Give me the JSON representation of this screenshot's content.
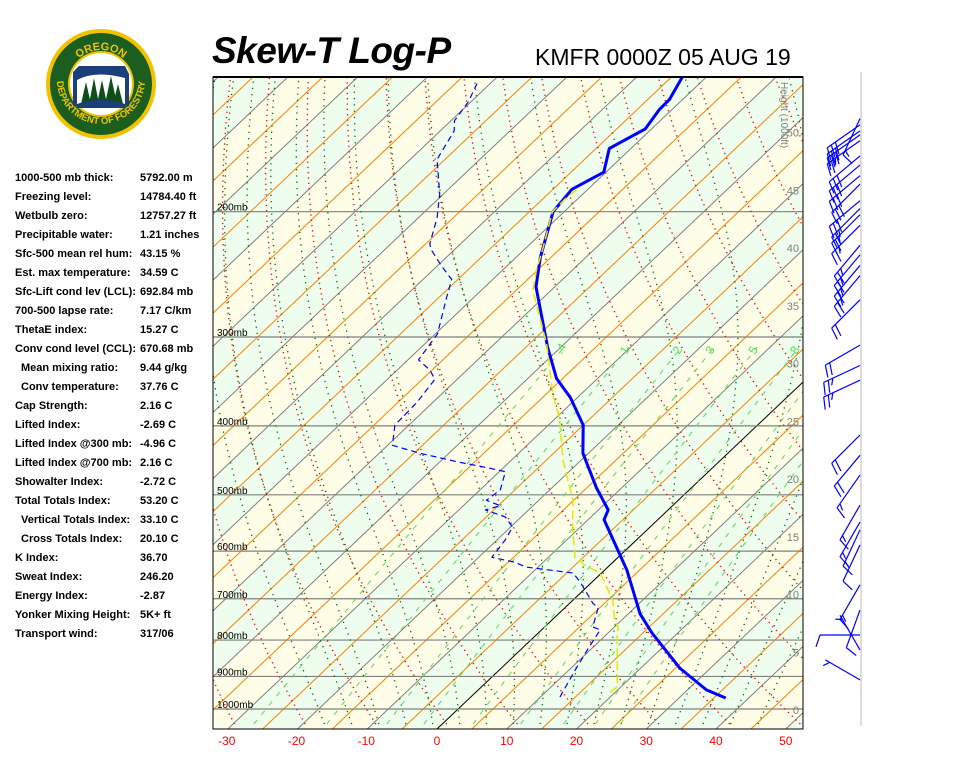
{
  "header": {
    "title": "Skew-T Log-P",
    "station": "KMFR 0000Z 05 AUG 19"
  },
  "logo": {
    "top_text": "OREGON",
    "bottom_text": "DEPARTMENT OF FORESTRY",
    "colors": {
      "ring": "#f2c200",
      "field": "#1b5e20"
    }
  },
  "stats": [
    {
      "label": "1000-500 mb thick:",
      "value": "5792.00 m"
    },
    {
      "label": "Freezing level:",
      "value": "14784.40 ft"
    },
    {
      "label": "Wetbulb zero:",
      "value": "12757.27 ft"
    },
    {
      "label": "Precipitable water:",
      "value": "1.21 inches"
    },
    {
      "label": "Sfc-500 mean rel hum:",
      "value": "43.15 %"
    },
    {
      "label": "Est. max temperature:",
      "value": "34.59 C"
    },
    {
      "label": "Sfc-Lift cond lev (LCL):",
      "value": "692.84 mb"
    },
    {
      "label": "700-500 lapse rate:",
      "value": "7.17 C/km"
    },
    {
      "label": "ThetaE index:",
      "value": "15.27 C"
    },
    {
      "label": "Conv cond level (CCL):",
      "value": "670.68 mb"
    },
    {
      "label": "Mean mixing ratio:",
      "value": "9.44 g/kg",
      "sub": true
    },
    {
      "label": "Conv temperature:",
      "value": "37.76 C",
      "sub": true
    },
    {
      "label": "Cap Strength:",
      "value": "2.16 C"
    },
    {
      "label": "Lifted Index:",
      "value": "-2.69 C"
    },
    {
      "label": "Lifted Index @300 mb:",
      "value": "-4.96 C"
    },
    {
      "label": "Lifted Index @700 mb:",
      "value": "2.16 C"
    },
    {
      "label": "Showalter Index:",
      "value": "-2.72 C"
    },
    {
      "label": "Total Totals Index:",
      "value": "53.20 C"
    },
    {
      "label": "Vertical Totals Index:",
      "value": "33.10 C",
      "sub": true
    },
    {
      "label": "Cross Totals Index:",
      "value": "20.10 C",
      "sub": true
    },
    {
      "label": "K Index:",
      "value": "36.70"
    },
    {
      "label": "Sweat Index:",
      "value": "246.20"
    },
    {
      "label": "Energy Index:",
      "value": "-2.87"
    },
    {
      "label": "Yonker Mixing Height:",
      "value": "5K+ ft"
    },
    {
      "label": "Transport wind:",
      "value": "317/06"
    }
  ],
  "chart_data": {
    "type": "line",
    "subtype": "skew-t log-p",
    "x_axis": {
      "ticks": [
        -30,
        -20,
        -10,
        0,
        10,
        20,
        30,
        40,
        50
      ],
      "tick_color": "#ff0000"
    },
    "y_axis": {
      "scale": "log",
      "pressure_labels": [
        "200mb",
        "300mb",
        "400mb",
        "500mb",
        "600mb",
        "700mb",
        "800mb",
        "900mb",
        "1000mb"
      ],
      "pressure_values": [
        200,
        300,
        400,
        500,
        600,
        700,
        800,
        900,
        1000
      ],
      "range_mb": [
        1000,
        129
      ]
    },
    "height_axis": {
      "label": "Height (1000ft)",
      "ticks": [
        0,
        5,
        10,
        15,
        20,
        25,
        30,
        35,
        40,
        45,
        50
      ]
    },
    "mixing_ratio_labels": [
      ".4",
      "1",
      "2",
      "3",
      "5",
      "8"
    ],
    "mixing_ratio_values": [
      0.4,
      1,
      2,
      3,
      5,
      8,
      12,
      16,
      20
    ],
    "colors": {
      "temperature": "#0000ff",
      "dewpoint": "#0000ff",
      "wetbulb": "#e8e800",
      "dry_adiabat": "#ff0000",
      "moist_adiabat": "#007700",
      "mixing_ratio": "#55dd55",
      "isotherm": "#808080",
      "isotherm_alt": "#ff8000",
      "zero_isotherm": "#000000",
      "band_a": "#eefdee",
      "band_b": "#fdfde8",
      "wind": "#0000ff"
    },
    "series": [
      {
        "id": "temperature",
        "style": "solid-thick",
        "p": [
          965,
          940,
          876,
          782,
          735,
          638,
          542,
          525,
          489,
          437,
          399,
          365,
          343,
          310,
          255,
          232,
          200,
          186,
          176,
          163,
          153,
          144,
          139,
          129
        ],
        "t": [
          36.7,
          32.7,
          25.6,
          16.3,
          11.7,
          3.2,
          -7.7,
          -8.6,
          -13.6,
          -20.8,
          -25.0,
          -31.0,
          -35.9,
          -41.9,
          -52.7,
          -56.5,
          -61.6,
          -62.3,
          -60.3,
          -63.1,
          -60.9,
          -61.8,
          -61.9,
          -63.5
        ]
      },
      {
        "id": "dewpoint",
        "style": "dashed",
        "p": [
          962,
          950,
          873,
          826,
          774,
          767,
          721,
          710,
          663,
          644,
          632,
          621,
          612,
          579,
          555,
          537,
          525,
          518,
          509,
          492,
          464,
          458,
          450,
          437,
          426,
          399,
          370,
          344,
          334,
          323,
          297,
          264,
          249,
          239,
          226,
          222,
          204,
          189,
          169,
          166,
          154,
          149,
          140,
          131
        ],
        "t": [
          12.8,
          12.5,
          10.7,
          9.6,
          8.4,
          6.9,
          4.8,
          3.3,
          -1.7,
          -4.1,
          -11.6,
          -14.4,
          -18.1,
          -18.8,
          -19.7,
          -22.3,
          -26.2,
          -24.7,
          -27.5,
          -27.1,
          -29.1,
          -32.3,
          -37.1,
          -44.2,
          -49.3,
          -52.0,
          -52.3,
          -53.2,
          -55.3,
          -58.5,
          -59.7,
          -63.9,
          -65.9,
          -69.2,
          -73.4,
          -74.4,
          -77.3,
          -80.5,
          -86.1,
          -86.5,
          -88.0,
          -89.5,
          -90.4,
          -92.1
        ]
      },
      {
        "id": "wetbulb",
        "style": "dashed",
        "p": [
          947,
          931,
          782,
          769,
          750,
          703,
          644,
          628,
          613,
          555,
          509,
          447,
          389,
          364,
          307,
          258,
          242,
          224,
          200,
          191,
          186
        ],
        "t": [
          19.2,
          19.5,
          11.3,
          10.7,
          9.0,
          5.7,
          -0.2,
          -3.6,
          -6.1,
          -11.1,
          -15.1,
          -22.6,
          -29.6,
          -33.6,
          -42.5,
          -52.6,
          -55.1,
          -57.7,
          -61.7,
          -61.8,
          -61.5
        ]
      }
    ],
    "winds": [
      {
        "p": 148,
        "dir": 205,
        "spd": 15
      },
      {
        "p": 151,
        "dir": 235,
        "spd": 30
      },
      {
        "p": 154,
        "dir": 235,
        "spd": 30
      },
      {
        "p": 156,
        "dir": 235,
        "spd": 30
      },
      {
        "p": 159,
        "dir": 235,
        "spd": 25
      },
      {
        "p": 167,
        "dir": 230,
        "spd": 30
      },
      {
        "p": 172,
        "dir": 230,
        "spd": 30
      },
      {
        "p": 178,
        "dir": 230,
        "spd": 30
      },
      {
        "p": 183,
        "dir": 225,
        "spd": 30
      },
      {
        "p": 193,
        "dir": 230,
        "spd": 30
      },
      {
        "p": 198,
        "dir": 225,
        "spd": 25
      },
      {
        "p": 202,
        "dir": 225,
        "spd": 25
      },
      {
        "p": 209,
        "dir": 225,
        "spd": 25
      },
      {
        "p": 223,
        "dir": 220,
        "spd": 25
      },
      {
        "p": 230,
        "dir": 220,
        "spd": 25
      },
      {
        "p": 238,
        "dir": 220,
        "spd": 25
      },
      {
        "p": 246,
        "dir": 220,
        "spd": 25
      },
      {
        "p": 266,
        "dir": 225,
        "spd": 20
      },
      {
        "p": 308,
        "dir": 240,
        "spd": 20
      },
      {
        "p": 329,
        "dir": 245,
        "spd": 25
      },
      {
        "p": 345,
        "dir": 245,
        "spd": 25
      },
      {
        "p": 412,
        "dir": 225,
        "spd": 20
      },
      {
        "p": 440,
        "dir": 220,
        "spd": 20
      },
      {
        "p": 469,
        "dir": 215,
        "spd": 15
      },
      {
        "p": 517,
        "dir": 210,
        "spd": 15
      },
      {
        "p": 546,
        "dir": 210,
        "spd": 15
      },
      {
        "p": 560,
        "dir": 205,
        "spd": 15
      },
      {
        "p": 588,
        "dir": 205,
        "spd": 10
      },
      {
        "p": 669,
        "dir": 210,
        "spd": 15
      },
      {
        "p": 726,
        "dir": 200,
        "spd": 10
      },
      {
        "p": 787,
        "dir": 270,
        "spd": 10
      },
      {
        "p": 826,
        "dir": 330,
        "spd": 5
      },
      {
        "p": 910,
        "dir": 300,
        "spd": 5
      }
    ]
  }
}
